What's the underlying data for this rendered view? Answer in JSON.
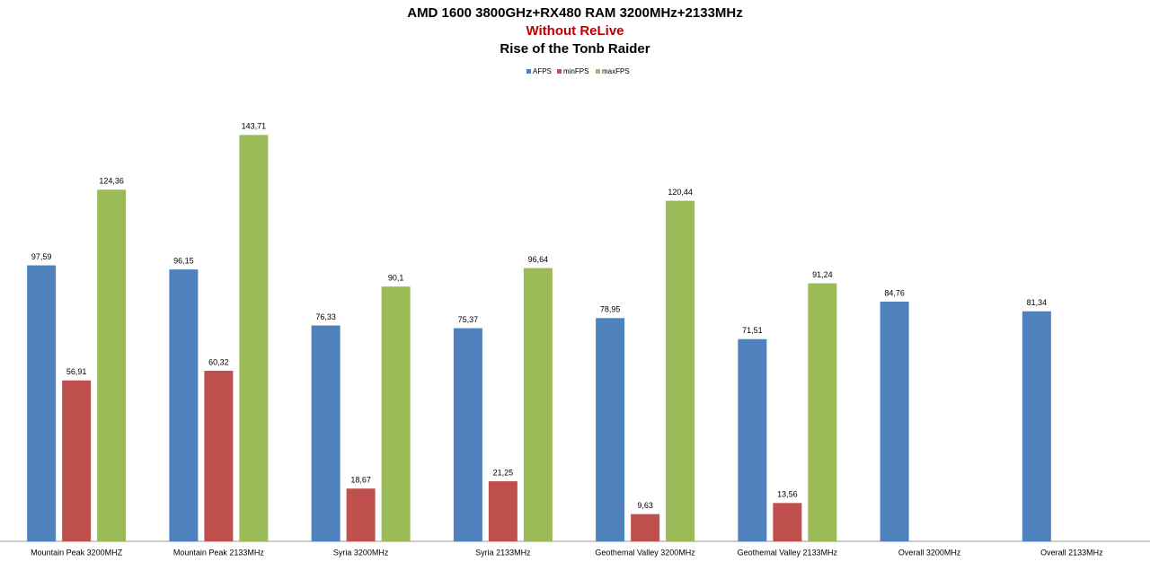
{
  "chart_data": {
    "type": "bar",
    "title": "AMD 1600 3800GHz+RX480 RAM 3200MHz+2133MHz",
    "subtitle": "Without ReLive",
    "subtitle_color": "#c00000",
    "subtitle2": "Rise of the Tonb Raider",
    "categories": [
      "Mountain Peak  3200MHZ",
      "Mountain Peak  2133MHz",
      "Syria 3200MHz",
      "Syria 2133MHz",
      "Geothemal Valley 3200MHz",
      "Geothemal Valley 2133MHz",
      "Overall 3200MHz",
      "Overall 2133MHz"
    ],
    "series": [
      {
        "name": "AFPS",
        "color": "#4f81bd",
        "values": [
          97.59,
          96.15,
          76.33,
          75.37,
          78.95,
          71.51,
          84.76,
          81.34
        ],
        "value_labels": [
          "97,59",
          "96,15",
          "76,33",
          "75,37",
          "78,95",
          "71,51",
          "84,76",
          "81,34"
        ]
      },
      {
        "name": "minFPS",
        "color": "#c0504d",
        "values": [
          56.91,
          60.32,
          18.67,
          21.25,
          9.63,
          13.56,
          null,
          null
        ],
        "value_labels": [
          "56,91",
          "60,32",
          "18,67",
          "21,25",
          "9,63",
          "13,56",
          null,
          null
        ]
      },
      {
        "name": "maxFPS",
        "color": "#9bbb59",
        "values": [
          124.36,
          143.71,
          90.1,
          96.64,
          120.44,
          91.24,
          null,
          null
        ],
        "value_labels": [
          "124,36",
          "143,71",
          "90,1",
          "96,64",
          "120,44",
          "91,24",
          null,
          null
        ]
      }
    ],
    "ylim": [
      0,
      160
    ],
    "legend": "top"
  }
}
